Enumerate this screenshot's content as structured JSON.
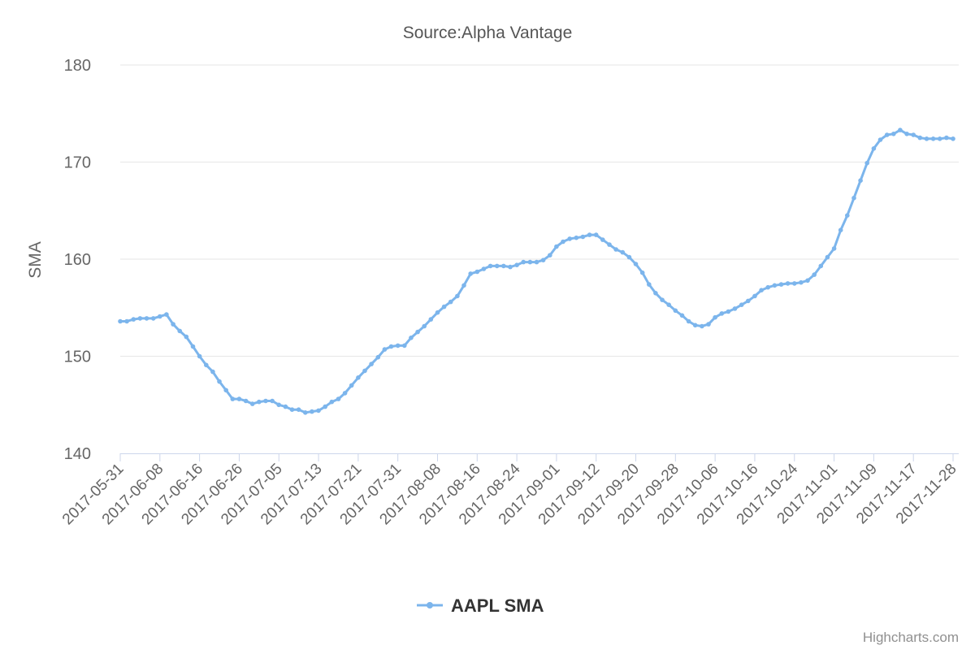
{
  "chart_data": {
    "type": "line",
    "title": "",
    "subtitle": "Source:Alpha Vantage",
    "xlabel": "",
    "ylabel": "SMA",
    "ylim": [
      140,
      180
    ],
    "yticks": [
      140,
      150,
      160,
      170,
      180
    ],
    "grid": "horizontal",
    "legend": "bottom-center",
    "colors": {
      "series": "#7cb5ec",
      "grid": "#e6e6e6",
      "axis": "#ccd6eb",
      "text": "#666666"
    },
    "x": [
      "2017-05-31",
      "2017-06-01",
      "2017-06-02",
      "2017-06-05",
      "2017-06-06",
      "2017-06-07",
      "2017-06-08",
      "2017-06-09",
      "2017-06-12",
      "2017-06-13",
      "2017-06-14",
      "2017-06-15",
      "2017-06-16",
      "2017-06-19",
      "2017-06-20",
      "2017-06-21",
      "2017-06-22",
      "2017-06-23",
      "2017-06-26",
      "2017-06-27",
      "2017-06-28",
      "2017-06-29",
      "2017-06-30",
      "2017-07-03",
      "2017-07-05",
      "2017-07-06",
      "2017-07-07",
      "2017-07-10",
      "2017-07-11",
      "2017-07-12",
      "2017-07-13",
      "2017-07-14",
      "2017-07-17",
      "2017-07-18",
      "2017-07-19",
      "2017-07-20",
      "2017-07-21",
      "2017-07-24",
      "2017-07-25",
      "2017-07-26",
      "2017-07-27",
      "2017-07-28",
      "2017-07-31",
      "2017-08-01",
      "2017-08-02",
      "2017-08-03",
      "2017-08-04",
      "2017-08-07",
      "2017-08-08",
      "2017-08-09",
      "2017-08-10",
      "2017-08-11",
      "2017-08-14",
      "2017-08-15",
      "2017-08-16",
      "2017-08-17",
      "2017-08-18",
      "2017-08-21",
      "2017-08-22",
      "2017-08-23",
      "2017-08-24",
      "2017-08-25",
      "2017-08-28",
      "2017-08-29",
      "2017-08-30",
      "2017-08-31",
      "2017-09-01",
      "2017-09-05",
      "2017-09-06",
      "2017-09-07",
      "2017-09-08",
      "2017-09-11",
      "2017-09-12",
      "2017-09-13",
      "2017-09-14",
      "2017-09-15",
      "2017-09-18",
      "2017-09-19",
      "2017-09-20",
      "2017-09-21",
      "2017-09-22",
      "2017-09-25",
      "2017-09-26",
      "2017-09-27",
      "2017-09-28",
      "2017-09-29",
      "2017-10-02",
      "2017-10-03",
      "2017-10-04",
      "2017-10-05",
      "2017-10-06",
      "2017-10-09",
      "2017-10-10",
      "2017-10-11",
      "2017-10-12",
      "2017-10-13",
      "2017-10-16",
      "2017-10-17",
      "2017-10-18",
      "2017-10-19",
      "2017-10-20",
      "2017-10-23",
      "2017-10-24",
      "2017-10-25",
      "2017-10-26",
      "2017-10-27",
      "2017-10-30",
      "2017-10-31",
      "2017-11-01",
      "2017-11-02",
      "2017-11-03",
      "2017-11-06",
      "2017-11-07",
      "2017-11-08",
      "2017-11-09",
      "2017-11-10",
      "2017-11-13",
      "2017-11-14",
      "2017-11-15",
      "2017-11-16",
      "2017-11-17",
      "2017-11-20",
      "2017-11-21",
      "2017-11-22",
      "2017-11-24",
      "2017-11-27",
      "2017-11-28"
    ],
    "xticks": [
      "2017-05-31",
      "2017-06-08",
      "2017-06-16",
      "2017-06-26",
      "2017-07-05",
      "2017-07-13",
      "2017-07-21",
      "2017-07-31",
      "2017-08-08",
      "2017-08-16",
      "2017-08-24",
      "2017-09-01",
      "2017-09-12",
      "2017-09-20",
      "2017-09-28",
      "2017-10-06",
      "2017-10-16",
      "2017-10-24",
      "2017-11-01",
      "2017-11-09",
      "2017-11-17",
      "2017-11-28"
    ],
    "series": [
      {
        "name": "AAPL SMA",
        "values": [
          153.6,
          153.6,
          153.8,
          153.9,
          153.9,
          153.9,
          154.1,
          154.3,
          153.3,
          152.6,
          152.0,
          151.0,
          150.0,
          149.1,
          148.4,
          147.4,
          146.5,
          145.6,
          145.6,
          145.4,
          145.1,
          145.3,
          145.4,
          145.4,
          145.0,
          144.8,
          144.5,
          144.5,
          144.2,
          144.3,
          144.4,
          144.8,
          145.3,
          145.6,
          146.2,
          147.0,
          147.8,
          148.5,
          149.2,
          149.9,
          150.7,
          151.0,
          151.1,
          151.1,
          151.9,
          152.5,
          153.1,
          153.8,
          154.5,
          155.1,
          155.6,
          156.2,
          157.3,
          158.5,
          158.7,
          159.0,
          159.3,
          159.3,
          159.3,
          159.2,
          159.4,
          159.7,
          159.7,
          159.7,
          159.9,
          160.4,
          161.3,
          161.8,
          162.1,
          162.2,
          162.3,
          162.5,
          162.5,
          162.0,
          161.5,
          161.0,
          160.7,
          160.2,
          159.5,
          158.6,
          157.4,
          156.5,
          155.8,
          155.3,
          154.7,
          154.2,
          153.6,
          153.2,
          153.1,
          153.3,
          154.0,
          154.4,
          154.6,
          154.9,
          155.3,
          155.7,
          156.2,
          156.8,
          157.1,
          157.3,
          157.4,
          157.5,
          157.5,
          157.6,
          157.8,
          158.4,
          159.3,
          160.2,
          161.1,
          163.0,
          164.5,
          166.3,
          168.1,
          169.9,
          171.4,
          172.3,
          172.8,
          172.9,
          173.3,
          172.9,
          172.8,
          172.5,
          172.4,
          172.4,
          172.4,
          172.5,
          172.4
        ]
      }
    ]
  },
  "credits": "Highcharts.com"
}
